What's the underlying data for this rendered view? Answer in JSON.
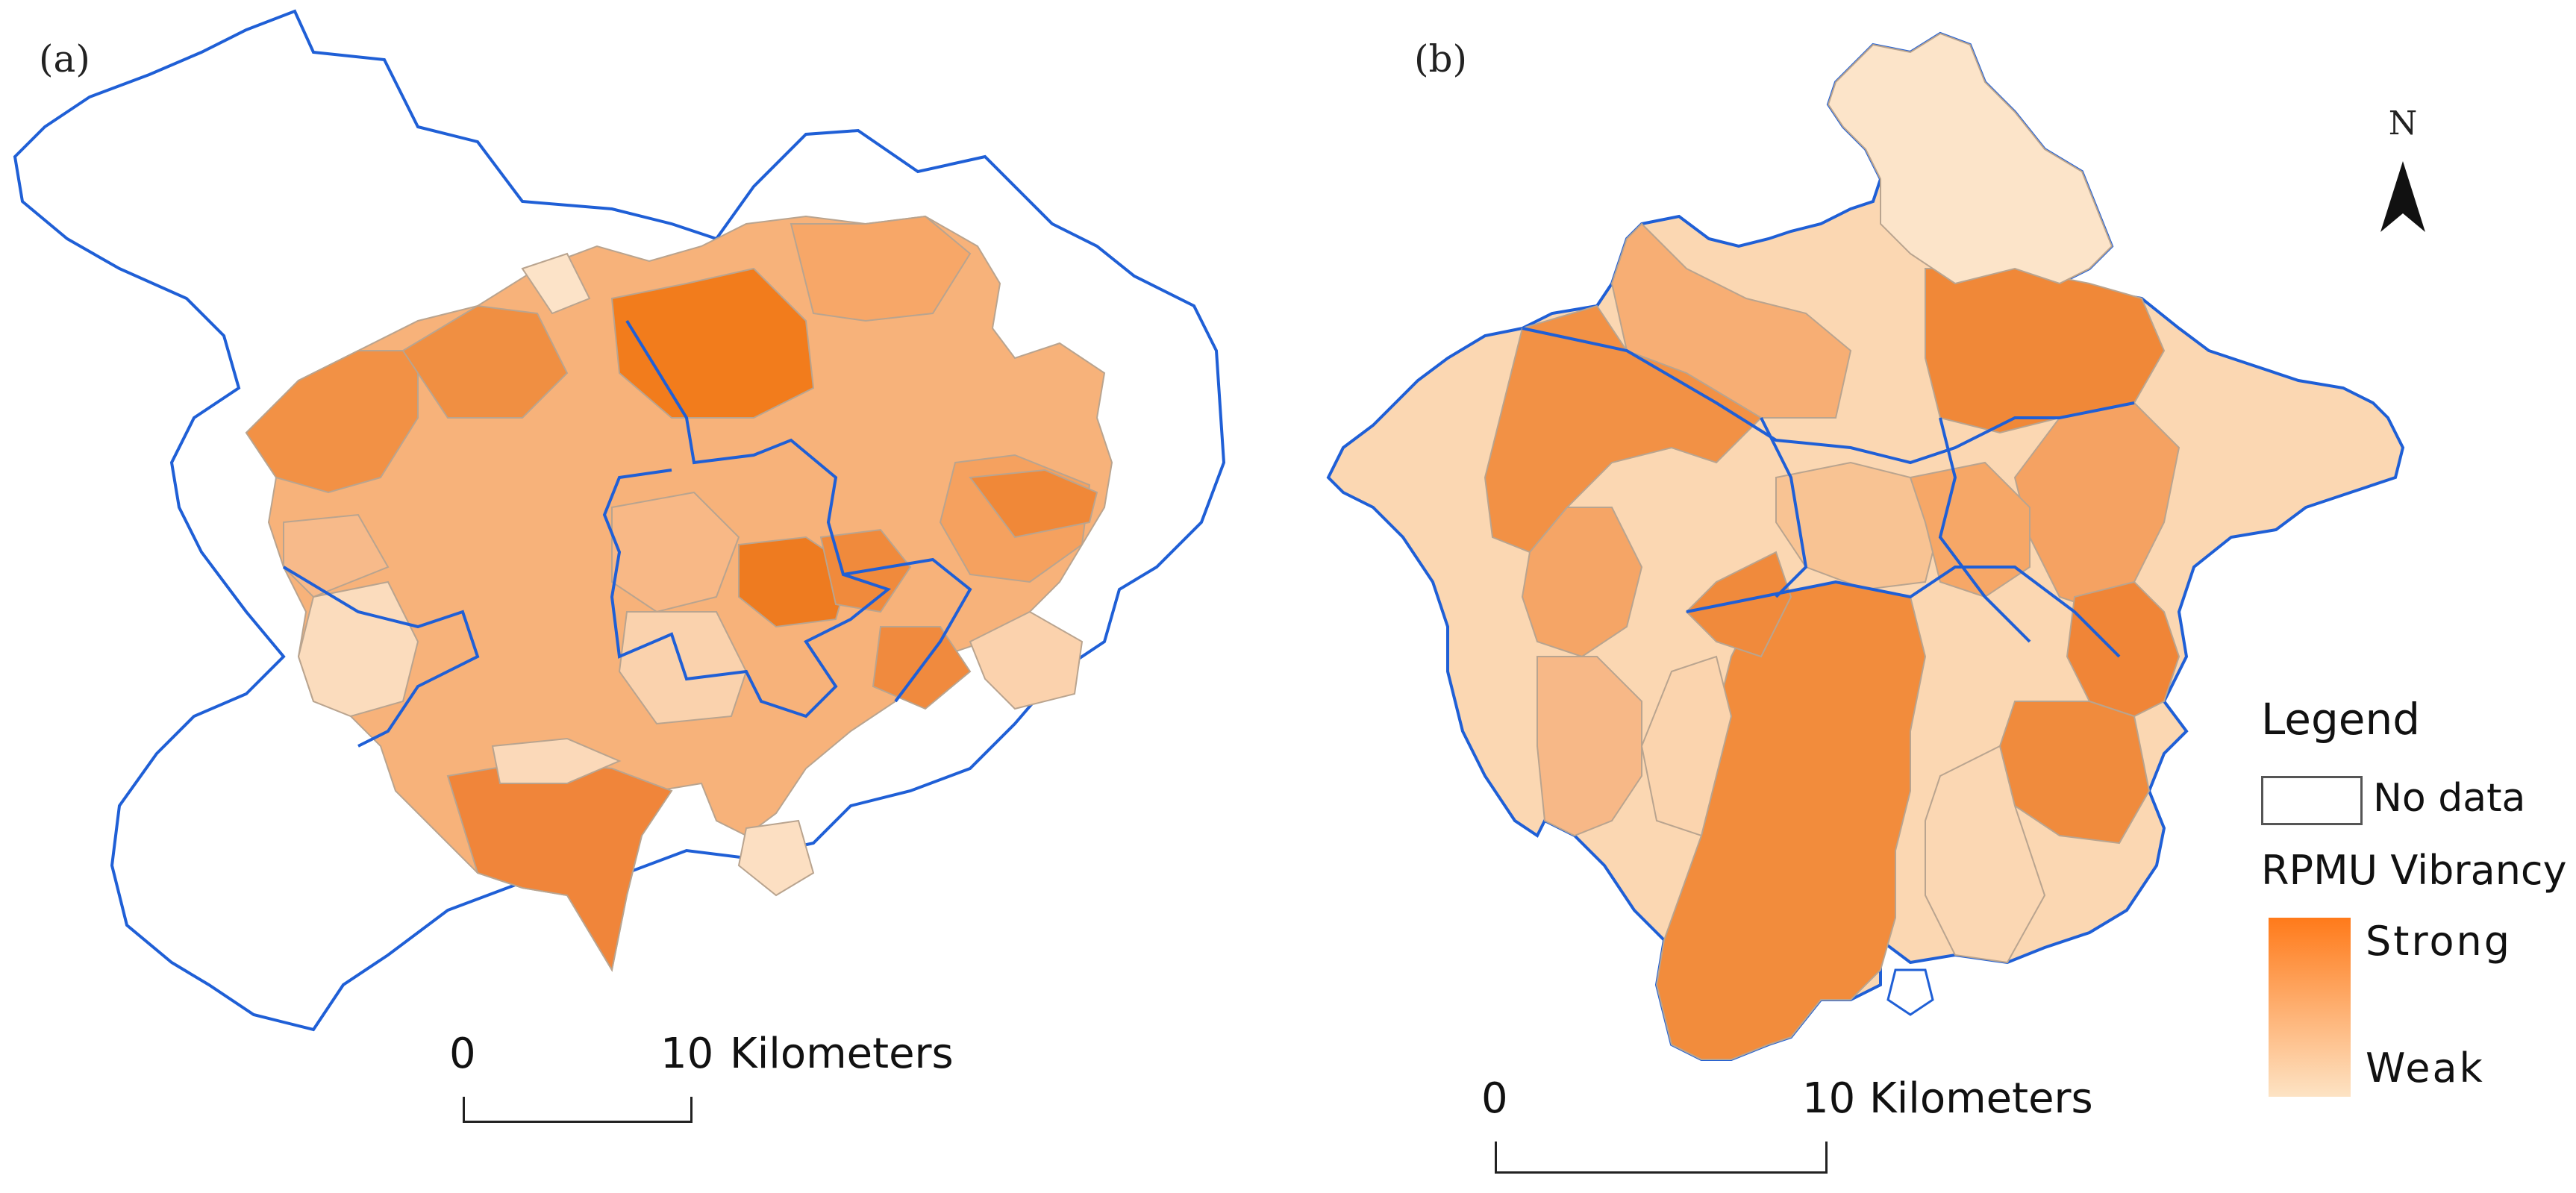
{
  "panels": [
    {
      "label": "(a)"
    },
    {
      "label": "(b)"
    }
  ],
  "scale_bars": [
    {
      "start": "0",
      "end": "10",
      "unit": "Kilometers"
    },
    {
      "start": "0",
      "end": "10",
      "unit": "Kilometers"
    }
  ],
  "north_arrow": {
    "letter": "N"
  },
  "legend": {
    "title": "Legend",
    "no_data_label": "No data",
    "vibrancy_title": "RPMU Vibrancy",
    "strong_label": "Strong",
    "weak_label": "Weak",
    "strong_color": "#ff7a1a",
    "weak_color": "#fde3c4"
  },
  "colors": {
    "boundary": "#1f5fd6",
    "unit_border": "#b9a48f"
  }
}
